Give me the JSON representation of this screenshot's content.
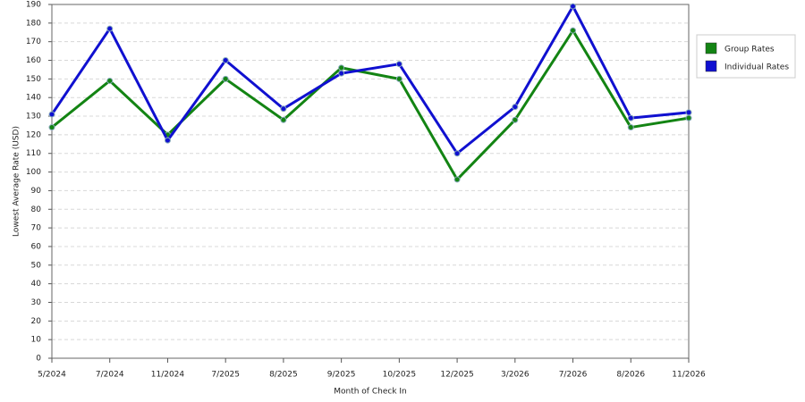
{
  "chart_data": {
    "type": "line",
    "x_label": "Month of Check In",
    "y_label": "Lowest Average Rate (USD)",
    "categories": [
      "5/2024",
      "7/2024",
      "11/2024",
      "7/2025",
      "8/2025",
      "9/2025",
      "10/2025",
      "12/2025",
      "3/2026",
      "7/2026",
      "8/2026",
      "11/2026"
    ],
    "series": [
      {
        "name": "Group Rates",
        "color": "#138413",
        "values": [
          124,
          149,
          120,
          150,
          128,
          156,
          150,
          96,
          128,
          176,
          124,
          129
        ]
      },
      {
        "name": "Individual Rates",
        "color": "#1010d0",
        "values": [
          131,
          177,
          117,
          160,
          134,
          153,
          158,
          110,
          135,
          189,
          129,
          132
        ]
      }
    ],
    "ylim": [
      0,
      190
    ],
    "yticks": [
      0,
      10,
      20,
      30,
      40,
      50,
      60,
      70,
      80,
      90,
      100,
      110,
      120,
      130,
      140,
      150,
      160,
      170,
      180,
      190
    ],
    "grid": true,
    "legend": "right"
  }
}
